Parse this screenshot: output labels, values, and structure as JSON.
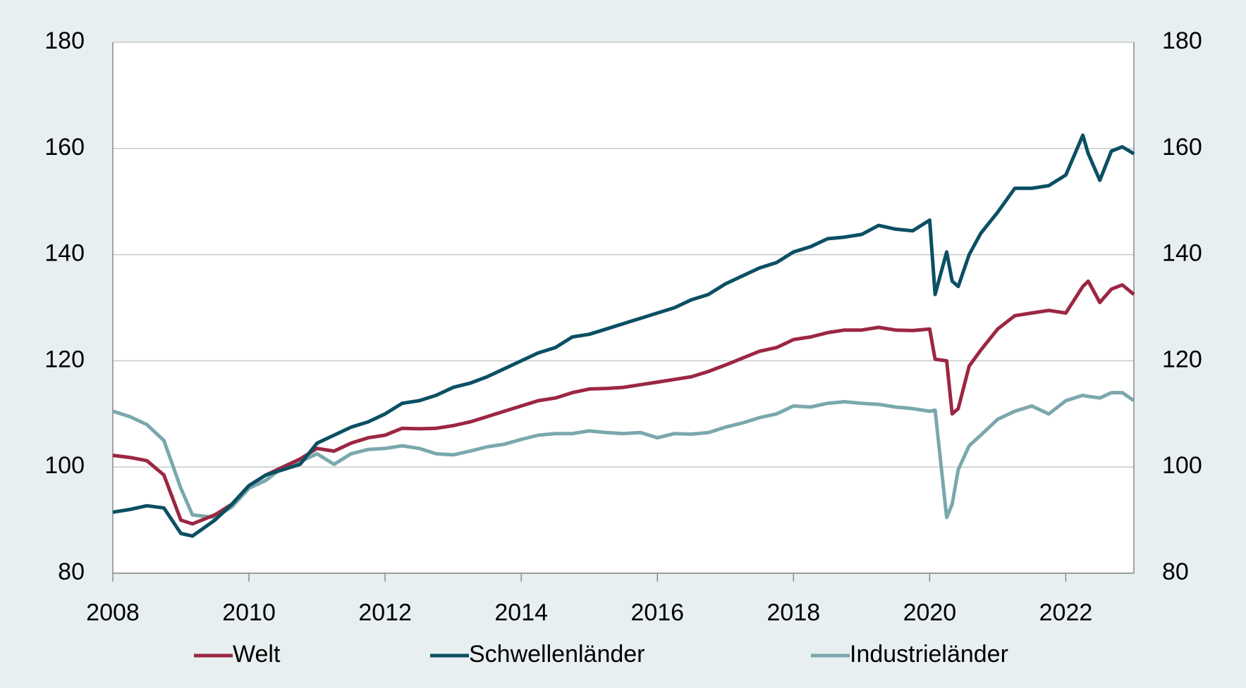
{
  "chart_data": {
    "type": "line",
    "x": [
      2008,
      2008.25,
      2008.5,
      2008.75,
      2009,
      2009.17,
      2009.5,
      2009.75,
      2010,
      2010.25,
      2010.5,
      2010.75,
      2011,
      2011.25,
      2011.5,
      2011.75,
      2012,
      2012.25,
      2012.5,
      2012.75,
      2013,
      2013.25,
      2013.5,
      2013.75,
      2014,
      2014.25,
      2014.5,
      2014.75,
      2015,
      2015.25,
      2015.5,
      2015.75,
      2016,
      2016.25,
      2016.5,
      2016.75,
      2017,
      2017.25,
      2017.5,
      2017.75,
      2018,
      2018.25,
      2018.5,
      2018.75,
      2019,
      2019.25,
      2019.5,
      2019.75,
      2020,
      2020.08,
      2020.25,
      2020.33,
      2020.42,
      2020.58,
      2020.75,
      2021,
      2021.25,
      2021.5,
      2021.75,
      2022,
      2022.25,
      2022.33,
      2022.5,
      2022.67,
      2022.83,
      2023
    ],
    "series": [
      {
        "name": "Welt",
        "color": "#9b2743",
        "values": [
          102.2,
          101.8,
          101.2,
          98.5,
          90,
          89.3,
          91,
          93,
          96.5,
          98.5,
          100,
          101.5,
          103.5,
          103,
          104.5,
          105.5,
          106,
          107.3,
          107.2,
          107.3,
          107.8,
          108.5,
          109.5,
          110.5,
          111.5,
          112.5,
          113,
          114,
          114.7,
          114.8,
          115,
          115.5,
          116,
          116.5,
          117,
          118,
          119.2,
          120.5,
          121.8,
          122.5,
          124,
          124.5,
          125.3,
          125.8,
          125.8,
          126.3,
          125.8,
          125.7,
          126,
          120.3,
          120,
          110,
          111,
          119,
          122,
          126,
          128.5,
          129,
          129.5,
          129,
          134,
          135,
          131,
          133.5,
          134.3,
          132.5
        ]
      },
      {
        "name": "Schwellenländer",
        "color": "#0b4f63",
        "values": [
          91.5,
          92,
          92.7,
          92.3,
          87.5,
          87,
          90,
          93,
          96.5,
          98.5,
          99.5,
          100.5,
          104.5,
          106,
          107.5,
          108.5,
          110,
          112,
          112.5,
          113.5,
          115,
          115.8,
          117,
          118.5,
          120,
          121.5,
          122.5,
          124.5,
          125,
          126,
          127,
          128,
          129,
          130,
          131.5,
          132.5,
          134.5,
          136,
          137.5,
          138.5,
          140.5,
          141.5,
          143,
          143.3,
          143.8,
          145.5,
          144.8,
          144.5,
          146.5,
          132.5,
          140.5,
          135,
          134,
          140,
          144,
          148,
          152.5,
          152.5,
          153,
          155,
          162.5,
          159,
          154,
          159.5,
          160.3,
          159
        ]
      },
      {
        "name": "Industrieländer",
        "color": "#7aa8ac",
        "values": [
          110.5,
          109.5,
          108,
          105,
          96,
          91,
          90.5,
          92.5,
          96,
          97.5,
          100,
          101,
          102.5,
          100.5,
          102.5,
          103.3,
          103.5,
          104,
          103.5,
          102.5,
          102.3,
          103,
          103.8,
          104.3,
          105.2,
          106,
          106.3,
          106.3,
          106.8,
          106.5,
          106.3,
          106.5,
          105.5,
          106.3,
          106.2,
          106.5,
          107.5,
          108.3,
          109.3,
          110,
          111.5,
          111.3,
          112,
          112.3,
          112,
          111.8,
          111.3,
          111,
          110.5,
          110.7,
          90.5,
          93,
          99.5,
          104,
          106,
          109,
          110.5,
          111.5,
          110,
          112.5,
          113.5,
          113.3,
          113,
          114,
          114,
          112.5
        ]
      }
    ],
    "xlim": [
      2008,
      2023
    ],
    "xticks": [
      2008,
      2010,
      2012,
      2014,
      2016,
      2018,
      2020,
      2022
    ],
    "ylim": [
      80,
      180
    ],
    "yticks": [
      80,
      100,
      120,
      140,
      160,
      180
    ],
    "y2lim": [
      80,
      180
    ],
    "y2ticks": [
      80,
      100,
      120,
      140,
      160,
      180
    ],
    "grid": true,
    "legend": "bottom"
  }
}
